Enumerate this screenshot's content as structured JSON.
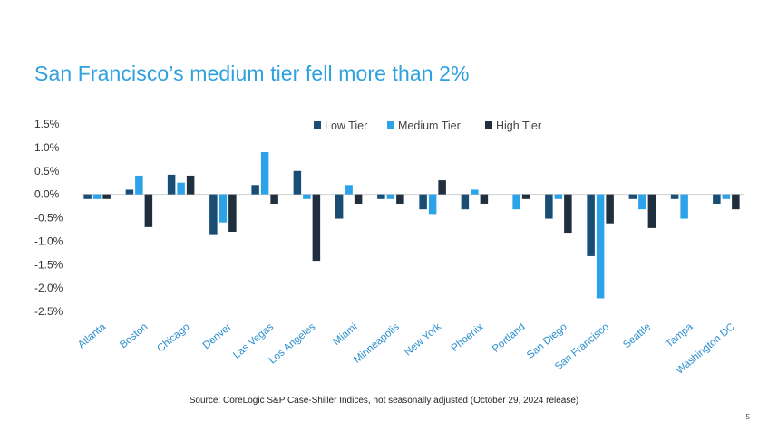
{
  "slide": {
    "title": "San Francisco’s medium tier fell more than 2%",
    "source": "Source: CoreLogic S&P Case-Shiller Indices, not seasonally adjusted (October 29, 2024 release)",
    "page_number": "5"
  },
  "colors": {
    "low": "#1a4d74",
    "medium": "#2ca3e8",
    "high": "#1f2f3e",
    "title": "#2fa1df",
    "xlabel": "#2a8fcf"
  },
  "chart_data": {
    "type": "bar",
    "title": "San Francisco’s medium tier fell more than 2%",
    "xlabel": "",
    "ylabel": "",
    "ylim": [
      -2.5,
      1.5
    ],
    "yticks": [
      1.5,
      1.0,
      0.5,
      0.0,
      -0.5,
      -1.0,
      -1.5,
      -2.0,
      -2.5
    ],
    "ytick_labels": [
      "1.5%",
      "1.0%",
      "0.5%",
      "0.0%",
      "-0.5%",
      "-1.0%",
      "-1.5%",
      "-2.0%",
      "-2.5%"
    ],
    "grid": false,
    "legend_position": "top-center",
    "categories": [
      "Atlanta",
      "Boston",
      "Chicago",
      "Denver",
      "Las Vegas",
      "Los Angeles",
      "Miami",
      "Minneapolis",
      "New York",
      "Phoenix",
      "Portland",
      "San Diego",
      "San Francisco",
      "Seattle",
      "Tampa",
      "Washington DC"
    ],
    "series": [
      {
        "name": "Low Tier",
        "key": "low",
        "values": [
          -0.1,
          0.1,
          0.42,
          -0.85,
          0.2,
          0.5,
          -0.52,
          -0.1,
          -0.32,
          -0.32,
          0.0,
          -0.52,
          -1.32,
          -0.1,
          -0.1,
          -0.2
        ]
      },
      {
        "name": "Medium Tier",
        "key": "medium",
        "values": [
          -0.1,
          0.4,
          0.25,
          -0.6,
          0.9,
          -0.1,
          0.2,
          -0.1,
          -0.42,
          0.1,
          -0.32,
          -0.1,
          -2.22,
          -0.32,
          -0.52,
          -0.1
        ]
      },
      {
        "name": "High Tier",
        "key": "high",
        "values": [
          -0.1,
          -0.7,
          0.4,
          -0.8,
          -0.2,
          -1.42,
          -0.2,
          -0.2,
          0.3,
          -0.2,
          -0.1,
          -0.82,
          -0.62,
          -0.72,
          0.0,
          -0.32
        ]
      }
    ]
  }
}
